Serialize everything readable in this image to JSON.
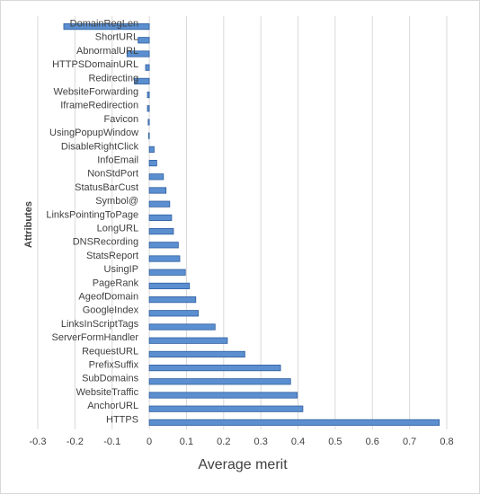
{
  "chart_data": {
    "type": "hbar",
    "x_label": "Average merit",
    "y_label": "Attributes",
    "categories": [
      "DomainRegLen",
      "ShortURL",
      "AbnormalURL",
      "HTTPSDomainURL",
      "Redirecting",
      "WebsiteForwarding",
      "IframeRedirection",
      "Favicon",
      "UsingPopupWindow",
      "DisableRightClick",
      "InfoEmail",
      "NonStdPort",
      "StatusBarCust",
      "Symbol@",
      "LinksPointingToPage",
      "LongURL",
      "DNSRecording",
      "StatsReport",
      "UsingIP",
      "PageRank",
      "AgeofDomain",
      "GoogleIndex",
      "LinksInScriptTags",
      "ServerFormHandler",
      "RequestURL",
      "PrefixSuffix",
      "SubDomains",
      "WebsiteTraffic",
      "AnchorURL",
      "HTTPS"
    ],
    "values": [
      -0.23,
      -0.03,
      -0.06,
      -0.01,
      -0.04,
      -0.005,
      -0.005,
      -0.003,
      -0.002,
      0.013,
      0.02,
      0.038,
      0.045,
      0.055,
      0.06,
      0.065,
      0.078,
      0.082,
      0.097,
      0.108,
      0.125,
      0.132,
      0.177,
      0.21,
      0.257,
      0.353,
      0.38,
      0.398,
      0.413,
      0.78
    ],
    "color": "#5b8fd0",
    "xlim": [
      -0.3,
      0.8
    ],
    "xticks": [
      -0.3,
      -0.2,
      -0.1,
      0,
      0.1,
      0.2,
      0.3,
      0.4,
      0.5,
      0.6,
      0.7,
      0.8
    ],
    "grid": true
  }
}
